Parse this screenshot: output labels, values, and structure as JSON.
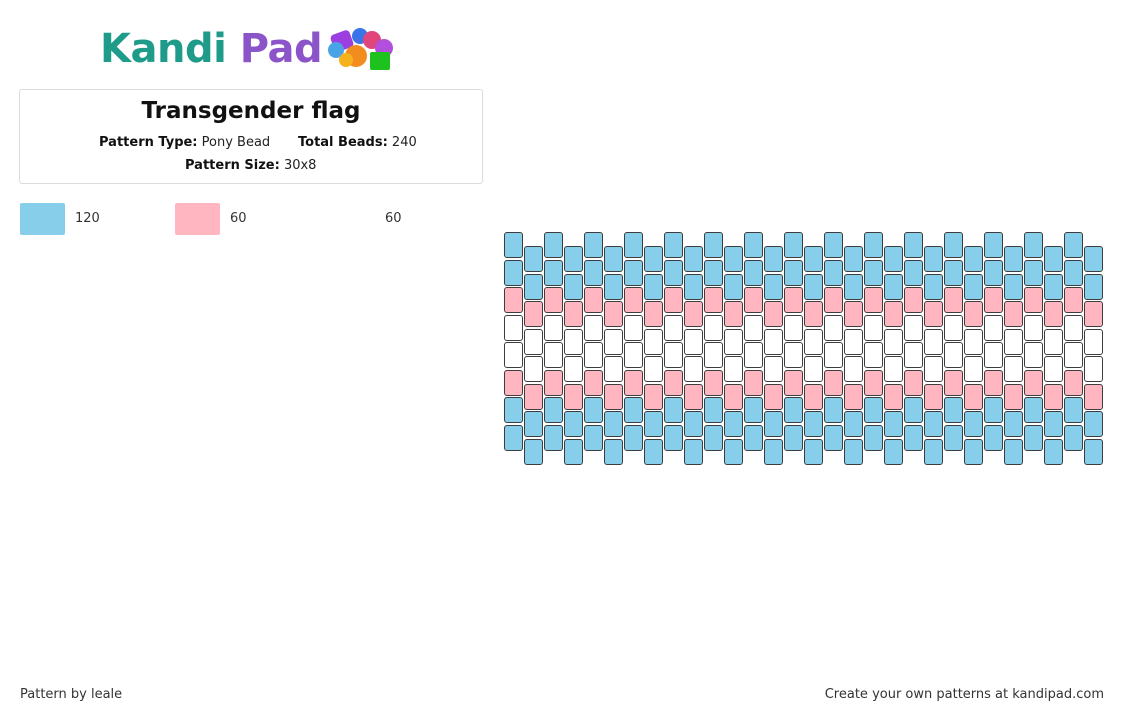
{
  "logo": {
    "part1": "Kandi",
    "part2": "Pad"
  },
  "pattern": {
    "title": "Transgender flag",
    "type_label": "Pattern Type:",
    "type_value": "Pony Bead",
    "total_label": "Total Beads:",
    "total_value": "240",
    "size_label": "Pattern Size:",
    "size_value": "30x8"
  },
  "legend": [
    {
      "color": "#87CEEB",
      "count": "120"
    },
    {
      "color": "#FFB6C1",
      "count": "60"
    },
    {
      "color": "#FFFFFF",
      "count": "60"
    }
  ],
  "grid": {
    "columns": 30,
    "rows": 8,
    "row_colors": [
      "#87CEEB",
      "#87CEEB",
      "#FFB6C1",
      "#FFFFFF",
      "#FFFFFF",
      "#FFB6C1",
      "#87CEEB",
      "#87CEEB"
    ]
  },
  "footer": {
    "credit": "Pattern by leale",
    "promo": "Create your own patterns at kandipad.com"
  }
}
